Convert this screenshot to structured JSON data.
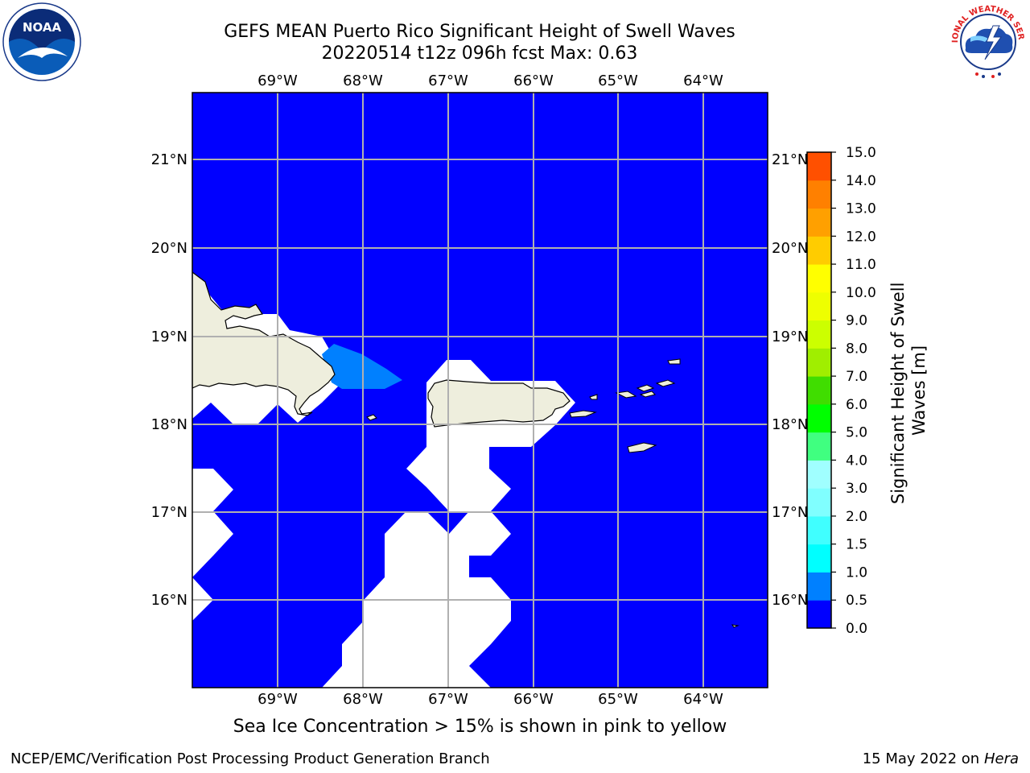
{
  "title_line1": "GEFS MEAN Puerto Rico Significant Height of Swell Waves",
  "title_line2": "20220514 t12z 096h fcst   Max: 0.63",
  "map": {
    "lon_labels": [
      "69°W",
      "68°W",
      "67°W",
      "66°W",
      "65°W",
      "64°W"
    ],
    "lat_labels": [
      "21°N",
      "20°N",
      "19°N",
      "18°N",
      "17°N",
      "16°N"
    ],
    "grid": true,
    "ocean_color": "#0000ff",
    "land_color": "#eeeedd",
    "swell_color": "#0080ff"
  },
  "colorbar": {
    "label_line1": "Significant Height of Swell",
    "label_line2": "Waves [m]",
    "ticks": [
      "0.0",
      "0.5",
      "1.0",
      "1.5",
      "2.0",
      "3.0",
      "4.0",
      "5.0",
      "6.0",
      "7.0",
      "8.0",
      "9.0",
      "10.0",
      "11.0",
      "12.0",
      "13.0",
      "14.0",
      "15.0"
    ],
    "colors": [
      "#0000ff",
      "#0080ff",
      "#00ffff",
      "#40ffff",
      "#80ffff",
      "#a0ffff",
      "#40ff80",
      "#00ff00",
      "#40dd00",
      "#a0ee00",
      "#ccff00",
      "#eeff00",
      "#ffff00",
      "#ffcc00",
      "#ffa000",
      "#ff8000",
      "#ff5000",
      "#ff3000",
      "#ff0000"
    ]
  },
  "footnote": "Sea Ice Concentration > 15% is shown in pink to yellow",
  "credits": {
    "left": "NCEP/EMC/Verification Post Processing Product Generation Branch",
    "right_prefix": "15 May 2022 on",
    "right_host": "Hera"
  },
  "logos": {
    "noaa_text": "NOAA",
    "nws_text": "NATIONAL WEATHER SERVICE"
  }
}
